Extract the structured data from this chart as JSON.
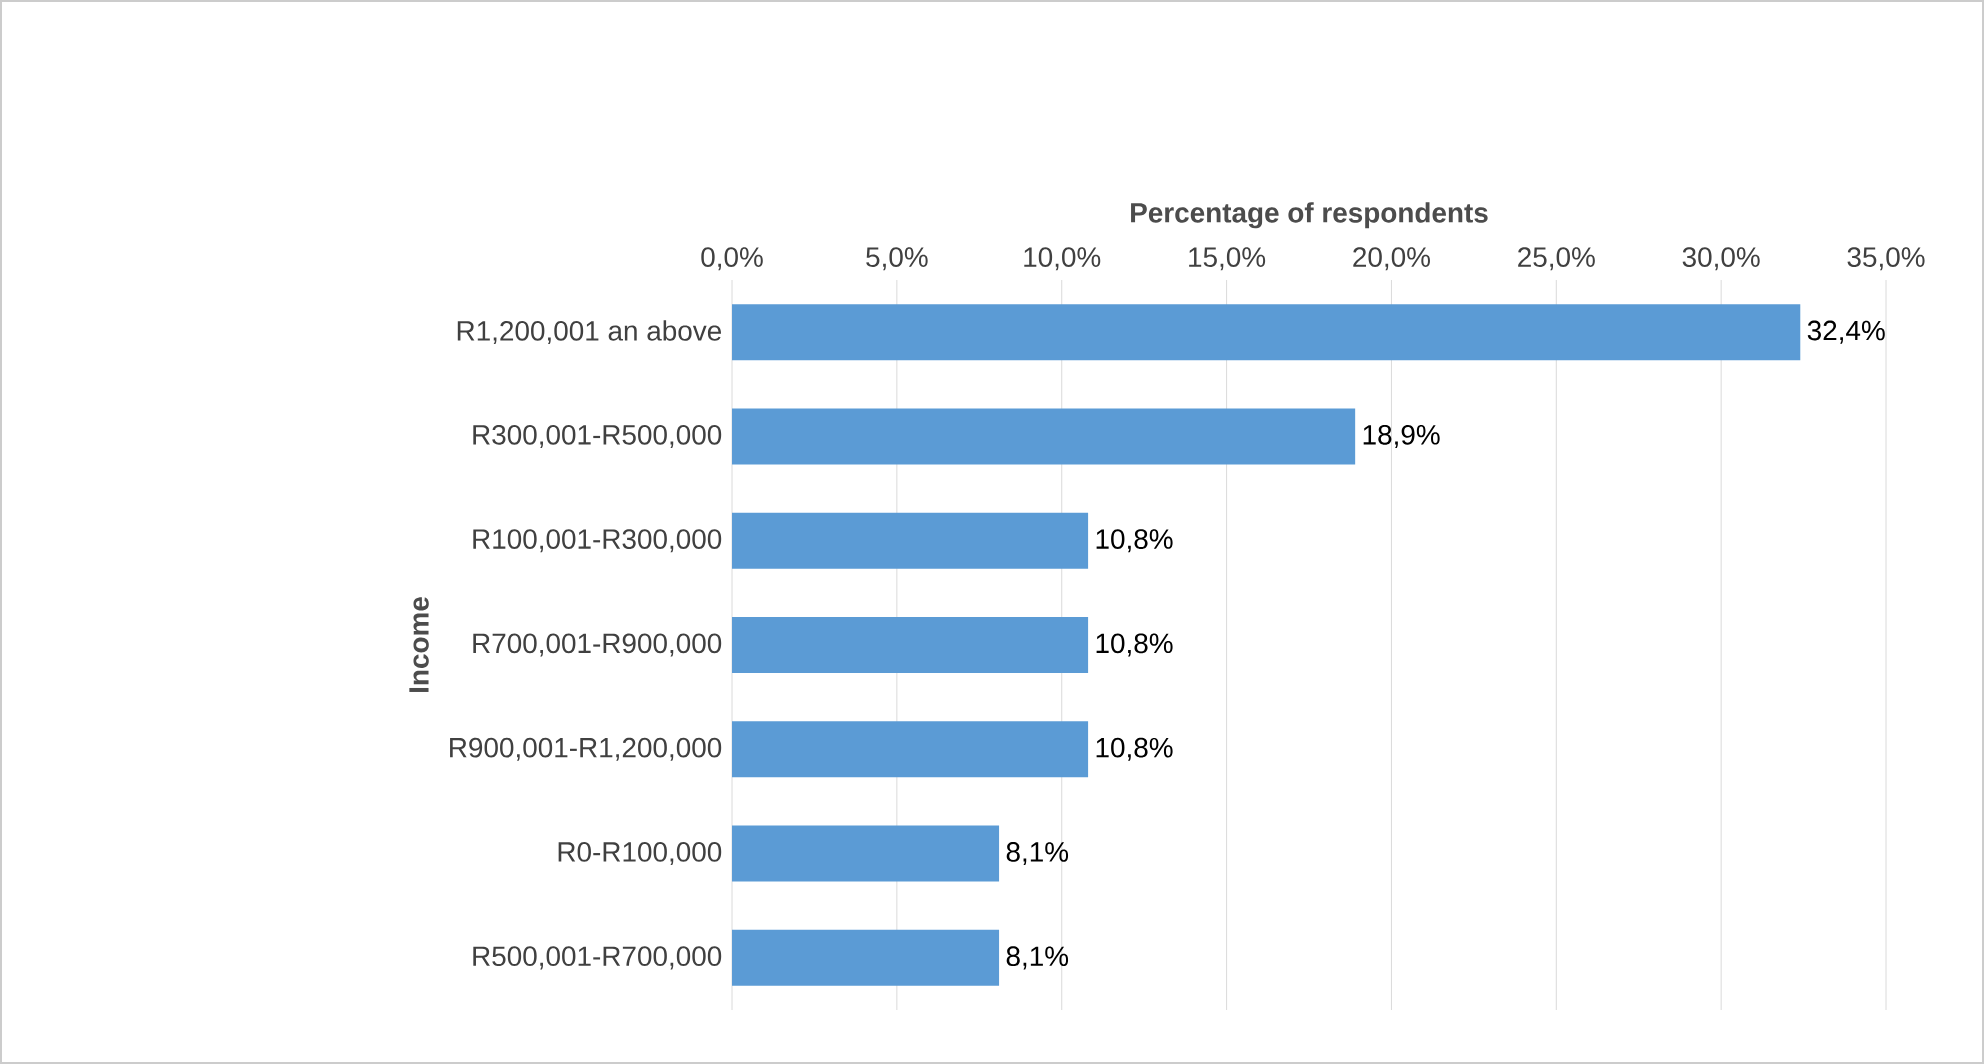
{
  "chart_data": {
    "type": "bar",
    "orientation": "horizontal",
    "xlabel": "Percentage of respondents",
    "ylabel": "Income",
    "categories": [
      "R1,200,001 an above",
      "R300,001-R500,000",
      "R100,001-R300,000",
      "R700,001-R900,000",
      "R900,001-R1,200,000",
      "R0-R100,000",
      "R500,001-R700,000"
    ],
    "values": [
      32.4,
      18.9,
      10.8,
      10.8,
      10.8,
      8.1,
      8.1
    ],
    "value_labels": [
      "32,4%",
      "18,9%",
      "10,8%",
      "10,8%",
      "10,8%",
      "8,1%",
      "8,1%"
    ],
    "color": "#5b9bd5",
    "xlim": [
      0,
      35
    ],
    "xticks": [
      {
        "value": 0,
        "label": "0,0%"
      },
      {
        "value": 5,
        "label": "5,0%"
      },
      {
        "value": 10,
        "label": "10,0%"
      },
      {
        "value": 15,
        "label": "15,0%"
      },
      {
        "value": 20,
        "label": "20,0%"
      },
      {
        "value": 25,
        "label": "25,0%"
      },
      {
        "value": 30,
        "label": "30,0%"
      },
      {
        "value": 35,
        "label": "35,0%"
      }
    ],
    "grid": "x"
  }
}
